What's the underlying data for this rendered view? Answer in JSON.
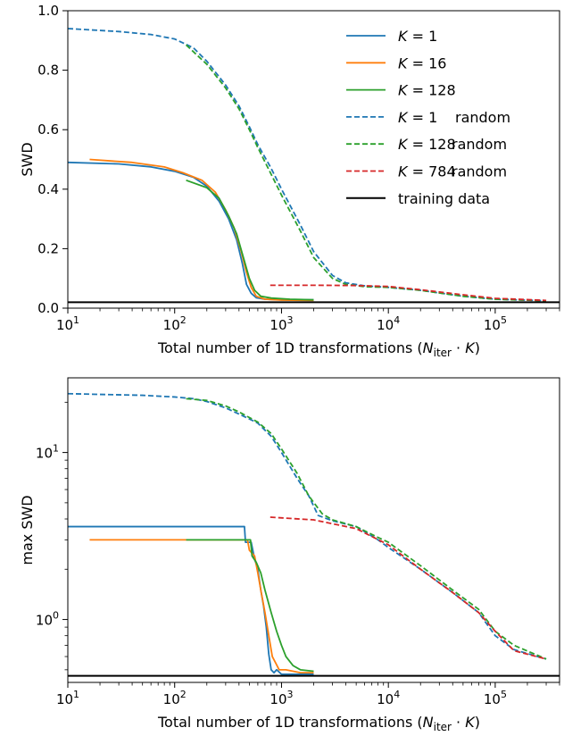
{
  "chart_data": [
    {
      "type": "line",
      "panel": "top",
      "xlabel": "Total number of 1D transformations (N_iter · K)",
      "ylabel": "SWD",
      "xscale": "log",
      "xlim": [
        10,
        400000
      ],
      "ylim": [
        0,
        1.0
      ],
      "yticks": [
        "0.0",
        "0.2",
        "0.4",
        "0.6",
        "0.8",
        "1.0"
      ],
      "legend_placement": "upper-right",
      "series": [
        {
          "name": "K = 1",
          "color": "#1f77b4",
          "style": "solid",
          "points": [
            [
              10,
              0.49
            ],
            [
              30,
              0.485
            ],
            [
              60,
              0.475
            ],
            [
              100,
              0.46
            ],
            [
              150,
              0.44
            ],
            [
              200,
              0.41
            ],
            [
              260,
              0.36
            ],
            [
              320,
              0.3
            ],
            [
              380,
              0.23
            ],
            [
              430,
              0.15
            ],
            [
              470,
              0.08
            ],
            [
              520,
              0.05
            ],
            [
              580,
              0.035
            ],
            [
              700,
              0.03
            ],
            [
              1000,
              0.028
            ],
            [
              1500,
              0.028
            ],
            [
              2000,
              0.028
            ]
          ]
        },
        {
          "name": "K = 16",
          "color": "#ff7f0e",
          "style": "solid",
          "points": [
            [
              16,
              0.5
            ],
            [
              40,
              0.49
            ],
            [
              80,
              0.475
            ],
            [
              120,
              0.455
            ],
            [
              180,
              0.43
            ],
            [
              240,
              0.39
            ],
            [
              300,
              0.33
            ],
            [
              360,
              0.27
            ],
            [
              420,
              0.19
            ],
            [
              470,
              0.12
            ],
            [
              520,
              0.07
            ],
            [
              580,
              0.04
            ],
            [
              700,
              0.03
            ],
            [
              1000,
              0.027
            ],
            [
              2000,
              0.026
            ]
          ]
        },
        {
          "name": "K = 128",
          "color": "#2ca02c",
          "style": "solid",
          "points": [
            [
              128,
              0.43
            ],
            [
              200,
              0.405
            ],
            [
              260,
              0.37
            ],
            [
              320,
              0.31
            ],
            [
              380,
              0.25
            ],
            [
              440,
              0.17
            ],
            [
              500,
              0.1
            ],
            [
              560,
              0.06
            ],
            [
              640,
              0.04
            ],
            [
              800,
              0.034
            ],
            [
              1200,
              0.03
            ],
            [
              2000,
              0.028
            ]
          ]
        },
        {
          "name": "K = 1     random",
          "color": "#1f77b4",
          "style": "dashed",
          "points": [
            [
              10,
              0.94
            ],
            [
              30,
              0.93
            ],
            [
              60,
              0.92
            ],
            [
              100,
              0.905
            ],
            [
              150,
              0.875
            ],
            [
              200,
              0.83
            ],
            [
              300,
              0.75
            ],
            [
              400,
              0.68
            ],
            [
              500,
              0.61
            ],
            [
              600,
              0.55
            ],
            [
              800,
              0.47
            ],
            [
              1000,
              0.4
            ],
            [
              1500,
              0.28
            ],
            [
              2000,
              0.19
            ],
            [
              3000,
              0.11
            ],
            [
              4000,
              0.085
            ],
            [
              6000,
              0.075
            ],
            [
              10000,
              0.07
            ],
            [
              20000,
              0.06
            ],
            [
              50000,
              0.04
            ],
            [
              100000,
              0.03
            ],
            [
              300000,
              0.025
            ]
          ]
        },
        {
          "name": "K = 128 random",
          "color": "#2ca02c",
          "style": "dashed",
          "points": [
            [
              128,
              0.885
            ],
            [
              200,
              0.82
            ],
            [
              300,
              0.74
            ],
            [
              400,
              0.67
            ],
            [
              500,
              0.6
            ],
            [
              600,
              0.54
            ],
            [
              800,
              0.45
            ],
            [
              1000,
              0.38
            ],
            [
              1500,
              0.26
            ],
            [
              2000,
              0.17
            ],
            [
              3000,
              0.1
            ],
            [
              4000,
              0.08
            ],
            [
              6000,
              0.072
            ],
            [
              10000,
              0.07
            ],
            [
              20000,
              0.06
            ],
            [
              50000,
              0.04
            ],
            [
              100000,
              0.03
            ],
            [
              300000,
              0.025
            ]
          ]
        },
        {
          "name": "K = 784 random",
          "color": "#d62728",
          "style": "dashed",
          "points": [
            [
              784,
              0.077
            ],
            [
              2000,
              0.077
            ],
            [
              5000,
              0.076
            ],
            [
              10000,
              0.073
            ],
            [
              20000,
              0.062
            ],
            [
              50000,
              0.045
            ],
            [
              100000,
              0.033
            ],
            [
              300000,
              0.026
            ]
          ]
        },
        {
          "name": "training data",
          "color": "#000000",
          "style": "solid",
          "points": [
            [
              10,
              0.02
            ],
            [
              400000,
              0.02
            ]
          ]
        }
      ]
    },
    {
      "type": "line",
      "panel": "bottom",
      "xlabel": "Total number of 1D transformations (N_iter · K)",
      "ylabel": "max SWD",
      "xscale": "log",
      "yscale": "log",
      "xlim": [
        10,
        400000
      ],
      "ylim": [
        0.42,
        28
      ],
      "series": [
        {
          "name": "K = 1",
          "color": "#1f77b4",
          "style": "solid",
          "points": [
            [
              10,
              3.6
            ],
            [
              100,
              3.6
            ],
            [
              450,
              3.6
            ],
            [
              460,
              2.9
            ],
            [
              520,
              2.9
            ],
            [
              560,
              2.3
            ],
            [
              600,
              2.0
            ],
            [
              640,
              1.5
            ],
            [
              680,
              1.2
            ],
            [
              720,
              0.9
            ],
            [
              760,
              0.62
            ],
            [
              800,
              0.5
            ],
            [
              850,
              0.48
            ],
            [
              900,
              0.5
            ],
            [
              1000,
              0.47
            ],
            [
              2000,
              0.47
            ]
          ]
        },
        {
          "name": "K = 16",
          "color": "#ff7f0e",
          "style": "solid",
          "points": [
            [
              16,
              3.0
            ],
            [
              100,
              3.0
            ],
            [
              480,
              3.0
            ],
            [
              500,
              2.6
            ],
            [
              560,
              2.4
            ],
            [
              600,
              1.9
            ],
            [
              640,
              1.5
            ],
            [
              700,
              1.1
            ],
            [
              760,
              0.8
            ],
            [
              820,
              0.6
            ],
            [
              880,
              0.55
            ],
            [
              950,
              0.5
            ],
            [
              1100,
              0.5
            ],
            [
              1500,
              0.48
            ],
            [
              2000,
              0.48
            ]
          ]
        },
        {
          "name": "K = 128",
          "color": "#2ca02c",
          "style": "solid",
          "points": [
            [
              128,
              3.0
            ],
            [
              300,
              3.0
            ],
            [
              512,
              3.0
            ],
            [
              530,
              2.4
            ],
            [
              580,
              2.2
            ],
            [
              640,
              1.9
            ],
            [
              700,
              1.5
            ],
            [
              800,
              1.1
            ],
            [
              900,
              0.85
            ],
            [
              1000,
              0.7
            ],
            [
              1100,
              0.6
            ],
            [
              1280,
              0.53
            ],
            [
              1500,
              0.5
            ],
            [
              2000,
              0.49
            ]
          ]
        },
        {
          "name": "K = 1     random",
          "color": "#1f77b4",
          "style": "dashed",
          "points": [
            [
              10,
              22.5
            ],
            [
              50,
              22.0
            ],
            [
              100,
              21.5
            ],
            [
              150,
              21.0
            ],
            [
              200,
              20.2
            ],
            [
              300,
              18.5
            ],
            [
              400,
              17.0
            ],
            [
              600,
              15.0
            ],
            [
              800,
              12.5
            ],
            [
              1000,
              10.0
            ],
            [
              1400,
              7.0
            ],
            [
              1800,
              5.5
            ],
            [
              2200,
              4.2
            ],
            [
              3000,
              3.9
            ],
            [
              5000,
              3.6
            ],
            [
              8000,
              3.0
            ],
            [
              10000,
              2.7
            ],
            [
              20000,
              2.0
            ],
            [
              40000,
              1.45
            ],
            [
              70000,
              1.1
            ],
            [
              100000,
              0.8
            ],
            [
              150000,
              0.66
            ],
            [
              300000,
              0.58
            ]
          ]
        },
        {
          "name": "K = 128 random",
          "color": "#2ca02c",
          "style": "dashed",
          "points": [
            [
              128,
              21.0
            ],
            [
              200,
              20.5
            ],
            [
              300,
              19.0
            ],
            [
              400,
              17.5
            ],
            [
              600,
              15.2
            ],
            [
              800,
              13.0
            ],
            [
              1000,
              10.5
            ],
            [
              1400,
              7.5
            ],
            [
              1800,
              5.5
            ],
            [
              2400,
              4.3
            ],
            [
              3000,
              3.95
            ],
            [
              5000,
              3.6
            ],
            [
              8000,
              3.1
            ],
            [
              10000,
              2.9
            ],
            [
              20000,
              2.1
            ],
            [
              40000,
              1.5
            ],
            [
              70000,
              1.15
            ],
            [
              100000,
              0.85
            ],
            [
              150000,
              0.7
            ],
            [
              300000,
              0.58
            ]
          ]
        },
        {
          "name": "K = 784 random",
          "color": "#d62728",
          "style": "dashed",
          "points": [
            [
              784,
              4.1
            ],
            [
              2000,
              3.95
            ],
            [
              5000,
              3.5
            ],
            [
              10000,
              2.8
            ],
            [
              20000,
              2.0
            ],
            [
              40000,
              1.45
            ],
            [
              70000,
              1.1
            ],
            [
              100000,
              0.85
            ],
            [
              150000,
              0.65
            ],
            [
              300000,
              0.58
            ]
          ]
        },
        {
          "name": "training data",
          "color": "#000000",
          "style": "solid",
          "points": [
            [
              10,
              0.46
            ],
            [
              400000,
              0.46
            ]
          ]
        }
      ]
    }
  ],
  "ui": {
    "top_ylabel": "SWD",
    "bottom_ylabel": "max SWD",
    "xlabel_prefix": "Total number of 1D transformations (",
    "xlabel_N": "N",
    "xlabel_sub": "iter",
    "xlabel_dot": " · ",
    "xlabel_K": "K",
    "xlabel_suffix": ")",
    "top_yticks": [
      "0.0",
      "0.2",
      "0.4",
      "0.6",
      "0.8",
      "1.0"
    ],
    "xtick_base": "10",
    "xtick_exps": [
      "1",
      "2",
      "3",
      "4",
      "5"
    ],
    "bottom_ytick_base": "10",
    "bottom_ytick_exps": [
      "0",
      "1"
    ],
    "legend": [
      {
        "math": "K",
        "eq": " = 1",
        "suffix": ""
      },
      {
        "math": "K",
        "eq": " = 16",
        "suffix": ""
      },
      {
        "math": "K",
        "eq": " = 128",
        "suffix": ""
      },
      {
        "math": "K",
        "eq": " = 1",
        "suffix": "random"
      },
      {
        "math": "K",
        "eq": " = 128",
        "suffix": "random"
      },
      {
        "math": "K",
        "eq": " = 784",
        "suffix": "random"
      },
      {
        "math": "",
        "eq": "",
        "suffix": "training data"
      }
    ]
  }
}
